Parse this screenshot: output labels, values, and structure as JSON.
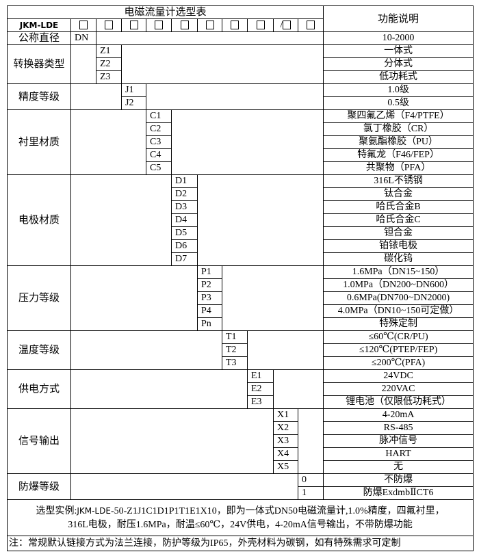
{
  "header": {
    "title": "电磁流量计选型表",
    "function_header": "功能说明",
    "model_prefix": "JKM-LDE",
    "slot_separator": "/"
  },
  "sections": [
    {
      "label": "公称直径",
      "codes": [
        "DN"
      ],
      "descs": [
        "10-2000"
      ]
    },
    {
      "label": "转换器类型",
      "codes": [
        "Z1",
        "Z2",
        "Z3"
      ],
      "descs": [
        "一体式",
        "分体式",
        "低功耗式"
      ]
    },
    {
      "label": "精度等级",
      "codes": [
        "J1",
        "J2"
      ],
      "descs": [
        "1.0级",
        "0.5级"
      ]
    },
    {
      "label": "衬里材质",
      "codes": [
        "C1",
        "C2",
        "C3",
        "C4",
        "C5"
      ],
      "descs": [
        "聚四氟乙烯（F4/PTFE）",
        "氯丁橡胶（CR）",
        "聚氨酯橡胶（PU）",
        "特氟龙（F46/FEP）",
        "共聚物（PFA）"
      ]
    },
    {
      "label": "电极材质",
      "codes": [
        "D1",
        "D2",
        "D3",
        "D4",
        "D5",
        "D6",
        "D7"
      ],
      "descs": [
        "316L不锈钢",
        "钛合金",
        "哈氏合金B",
        "哈氏合金C",
        "钽合金",
        "铂铱电极",
        "碳化钨"
      ]
    },
    {
      "label": "压力等级",
      "codes": [
        "P1",
        "P2",
        "P3",
        "P4",
        "Pn"
      ],
      "descs": [
        "1.6MPa（DN15~150）",
        "1.0MPa（DN200~DN600）",
        "0.6MPa(DN700~DN2000)",
        "4.0MPa（DN10~150可定做）",
        "特殊定制"
      ]
    },
    {
      "label": "温度等级",
      "codes": [
        "T1",
        "T2",
        "T3"
      ],
      "descs": [
        "≤60℃(CR/PU)",
        "≤120℃(PTEP/FEP)",
        "≤200℃(PFA)"
      ]
    },
    {
      "label": "供电方式",
      "codes": [
        "E1",
        "E2",
        "E3"
      ],
      "descs": [
        "24VDC",
        "220VAC",
        "锂电池（仅限低功耗式）"
      ]
    },
    {
      "label": "信号输出",
      "codes": [
        "X1",
        "X2",
        "X3",
        "X4",
        "X5"
      ],
      "descs": [
        "4-20mA",
        "RS-485",
        "脉冲信号",
        "HART",
        "无"
      ]
    },
    {
      "label": "防爆等级",
      "codes": [
        "0",
        "1"
      ],
      "descs": [
        "不防爆",
        "防爆ExdmbⅡCT6"
      ]
    }
  ],
  "example": {
    "prefix": "选型实例:",
    "model": "JKM-LDE",
    "line1_rest": "-50-Z1J1C1D1P1T1E1X10，即为一体式DN50电磁流量计,1.0%精度，四氟衬里，",
    "line2": "316L电极，耐压1.6MPa，耐温≤60℃，24V供电，4-20mA信号输出，不带防爆功能"
  },
  "note": "注：常规默认链接方式为法兰连接，防护等级为IP65，外壳材料为碳钢，如有特殊需求可定制"
}
